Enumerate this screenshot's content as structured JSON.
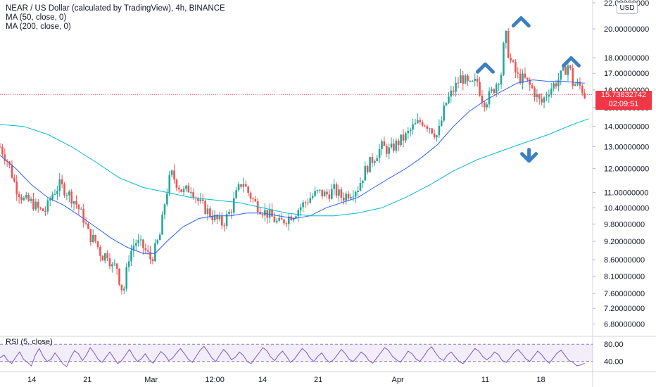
{
  "header": {
    "title": "NEAR / US Dollar (calculated by TradingView), 4h, BINANCE",
    "ma50": "MA (50, close, 0)",
    "ma200": "MA (200, close, 0)"
  },
  "currency_badge": "USD",
  "price_tag": {
    "price": "15.73832742",
    "countdown": "02:09:51"
  },
  "rsi": {
    "label": "RSI (5, close)",
    "levels": [
      "80.00",
      "40.00"
    ]
  },
  "colors": {
    "up": "#26a69a",
    "down": "#ef5350",
    "ma50": "#2962ff",
    "ma200": "#00bcd4",
    "rsi": "#7e57c2",
    "price_line": "#f23645",
    "arrow": "#3d7fc1"
  },
  "chart_data": {
    "type": "candlestick",
    "title": "NEAR / US Dollar (calculated by TradingView), 4h, BINANCE",
    "scale": "log",
    "ylim": [
      6.5,
      22.0
    ],
    "y_tick_labels": [
      "22.00000000",
      "20.00000000",
      "18.00000000",
      "17.00000000",
      "16.00000000",
      "15.00000000",
      "14.00000000",
      "13.00000000",
      "12.00000000",
      "11.00000000",
      "10.40000000",
      "9.80000000",
      "9.20000000",
      "8.60000000",
      "8.10000000",
      "7.60000000",
      "7.20000000",
      "6.80000000"
    ],
    "y_tick_values": [
      22.0,
      20.0,
      18.0,
      17.0,
      16.0,
      15.0,
      14.0,
      13.0,
      12.0,
      11.0,
      10.4,
      9.8,
      9.2,
      8.6,
      8.1,
      7.6,
      7.2,
      6.8
    ],
    "x_tick_labels": [
      "14",
      "21",
      "Mar",
      "12:00",
      "14",
      "21",
      "Apr",
      "11",
      "18"
    ],
    "x_range_days": [
      "Feb 10",
      "Apr 21"
    ],
    "x_tick_days": [
      4,
      11,
      19,
      27,
      33,
      40,
      50,
      61,
      68
    ],
    "last_price": 15.73832742,
    "price_path": [
      [
        0,
        13.0
      ],
      [
        1,
        12.3
      ],
      [
        2,
        11.2
      ],
      [
        3,
        10.7
      ],
      [
        4,
        10.6
      ],
      [
        5,
        10.3
      ],
      [
        5.8,
        10.3
      ],
      [
        6.5,
        10.9
      ],
      [
        7.5,
        11.3
      ],
      [
        8.5,
        11.0
      ],
      [
        9.5,
        10.6
      ],
      [
        10.5,
        10.0
      ],
      [
        11.2,
        9.4
      ],
      [
        12,
        9.2
      ],
      [
        12.8,
        8.7
      ],
      [
        13.5,
        8.8
      ],
      [
        14.2,
        8.3
      ],
      [
        14.6,
        8.5
      ],
      [
        15,
        8.0
      ],
      [
        15.5,
        7.6
      ],
      [
        16.2,
        8.7
      ],
      [
        17,
        9.2
      ],
      [
        18,
        9.0
      ],
      [
        19,
        8.6
      ],
      [
        19.6,
        9.0
      ],
      [
        20.2,
        9.5
      ],
      [
        20.8,
        10.8
      ],
      [
        21.5,
        11.8
      ],
      [
        22.2,
        11.4
      ],
      [
        23,
        11.0
      ],
      [
        24,
        11.2
      ],
      [
        25,
        10.6
      ],
      [
        26,
        10.3
      ],
      [
        27,
        10.0
      ],
      [
        28,
        9.8
      ],
      [
        29,
        10.3
      ],
      [
        29.8,
        11.0
      ],
      [
        30.5,
        11.5
      ],
      [
        31,
        11.1
      ],
      [
        32,
        10.6
      ],
      [
        33,
        10.3
      ],
      [
        34,
        10.1
      ],
      [
        35,
        9.8
      ],
      [
        36,
        10.0
      ],
      [
        37,
        10.2
      ],
      [
        38,
        10.5
      ],
      [
        39,
        10.8
      ],
      [
        40,
        11.0
      ],
      [
        41,
        10.9
      ],
      [
        42,
        11.1
      ],
      [
        43,
        10.8
      ],
      [
        44,
        11.0
      ],
      [
        45,
        11.2
      ],
      [
        46,
        12.0
      ],
      [
        47,
        12.5
      ],
      [
        48,
        13.0
      ],
      [
        49,
        12.8
      ],
      [
        50,
        13.2
      ],
      [
        51,
        13.5
      ],
      [
        52,
        14.0
      ],
      [
        53,
        14.3
      ],
      [
        54,
        14.0
      ],
      [
        55,
        13.5
      ],
      [
        55.5,
        14.3
      ],
      [
        56,
        15.2
      ],
      [
        57,
        16.0
      ],
      [
        58,
        16.8
      ],
      [
        59,
        16.2
      ],
      [
        60,
        16.5
      ],
      [
        60.5,
        15.6
      ],
      [
        61,
        15.3
      ],
      [
        62,
        16.0
      ],
      [
        63,
        17.0
      ],
      [
        63.5,
        19.8
      ],
      [
        64,
        18.0
      ],
      [
        65,
        16.8
      ],
      [
        66,
        16.6
      ],
      [
        67,
        16.0
      ],
      [
        68,
        15.2
      ],
      [
        69,
        16.0
      ],
      [
        70,
        16.5
      ],
      [
        71,
        17.2
      ],
      [
        71.5,
        17.6
      ],
      [
        72,
        16.4
      ],
      [
        73,
        16.2
      ],
      [
        73.5,
        15.7
      ]
    ],
    "series": [
      {
        "name": "MA (50, close, 0)",
        "points": [
          [
            0,
            12.6
          ],
          [
            2,
            12.0
          ],
          [
            4,
            11.3
          ],
          [
            6,
            10.8
          ],
          [
            8,
            10.5
          ],
          [
            10,
            10.1
          ],
          [
            12,
            9.7
          ],
          [
            14,
            9.3
          ],
          [
            16,
            9.0
          ],
          [
            18,
            8.8
          ],
          [
            19.5,
            8.8
          ],
          [
            21,
            9.2
          ],
          [
            23,
            9.7
          ],
          [
            25,
            10.0
          ],
          [
            27,
            10.1
          ],
          [
            29,
            10.1
          ],
          [
            31,
            10.2
          ],
          [
            33,
            10.2
          ],
          [
            35,
            10.1
          ],
          [
            37,
            10.0
          ],
          [
            39,
            10.1
          ],
          [
            41,
            10.4
          ],
          [
            43,
            10.6
          ],
          [
            45,
            10.8
          ],
          [
            47,
            11.2
          ],
          [
            49,
            11.6
          ],
          [
            51,
            12.0
          ],
          [
            53,
            12.5
          ],
          [
            55,
            13.1
          ],
          [
            57,
            14.0
          ],
          [
            59,
            14.8
          ],
          [
            61,
            15.4
          ],
          [
            63,
            15.9
          ],
          [
            65,
            16.4
          ],
          [
            67,
            16.6
          ],
          [
            69,
            16.5
          ],
          [
            71,
            16.5
          ],
          [
            73.5,
            16.4
          ]
        ]
      },
      {
        "name": "MA (200, close, 0)",
        "points": [
          [
            0,
            14.1
          ],
          [
            3,
            14.0
          ],
          [
            6,
            13.6
          ],
          [
            9,
            13.0
          ],
          [
            12,
            12.3
          ],
          [
            15,
            11.6
          ],
          [
            18,
            11.2
          ],
          [
            21,
            11.0
          ],
          [
            24,
            10.8
          ],
          [
            27,
            10.7
          ],
          [
            30,
            10.6
          ],
          [
            33,
            10.4
          ],
          [
            36,
            10.2
          ],
          [
            39,
            10.1
          ],
          [
            42,
            10.1
          ],
          [
            45,
            10.2
          ],
          [
            48,
            10.4
          ],
          [
            51,
            10.8
          ],
          [
            54,
            11.3
          ],
          [
            57,
            11.9
          ],
          [
            60,
            12.4
          ],
          [
            63,
            12.8
          ],
          [
            66,
            13.2
          ],
          [
            69,
            13.6
          ],
          [
            72,
            14.1
          ],
          [
            74,
            14.4
          ]
        ]
      }
    ],
    "rsi_series": {
      "name": "RSI (5, close)",
      "levels": [
        80,
        40
      ],
      "ylim": [
        20,
        95
      ],
      "values": [
        48,
        55,
        42,
        35,
        50,
        62,
        45,
        38,
        30,
        55,
        70,
        52,
        40,
        45,
        60,
        48,
        35,
        28,
        50,
        65,
        58,
        42,
        55,
        72,
        60,
        45,
        38,
        50,
        62,
        48,
        35,
        42,
        55,
        68,
        52,
        40,
        46,
        58,
        44,
        36,
        50,
        63,
        55,
        42,
        48,
        60,
        70,
        58,
        45,
        38,
        52,
        66,
        75,
        62,
        48,
        40,
        55,
        68,
        58,
        44,
        50,
        62,
        54,
        40,
        35,
        48,
        60,
        72,
        65,
        50,
        42,
        55,
        64,
        52,
        38,
        45,
        58,
        70,
        62,
        48,
        40,
        52,
        60,
        46,
        38,
        44,
        56,
        68,
        58,
        45,
        40,
        50,
        62,
        55,
        42,
        36,
        48,
        60,
        72,
        66,
        52,
        44,
        38,
        50,
        64,
        58,
        46,
        40,
        52,
        66,
        74,
        60,
        48,
        42,
        55,
        62,
        50,
        40,
        35,
        46,
        58,
        70,
        64,
        52,
        44,
        50,
        62,
        56,
        42,
        38,
        48,
        60,
        68,
        58,
        46,
        40,
        52,
        64,
        56,
        44,
        36,
        48,
        60,
        66,
        54,
        42,
        38,
        30,
        32,
        36
      ]
    },
    "annotations": [
      {
        "shape": "chevron-up",
        "day": 61.0,
        "price": 17.4
      },
      {
        "shape": "chevron-up",
        "day": 65.5,
        "price": 20.6
      },
      {
        "shape": "chevron-up",
        "day": 71.8,
        "price": 17.8
      },
      {
        "shape": "arrow-down",
        "day": 66.5,
        "price": 12.6
      }
    ]
  }
}
